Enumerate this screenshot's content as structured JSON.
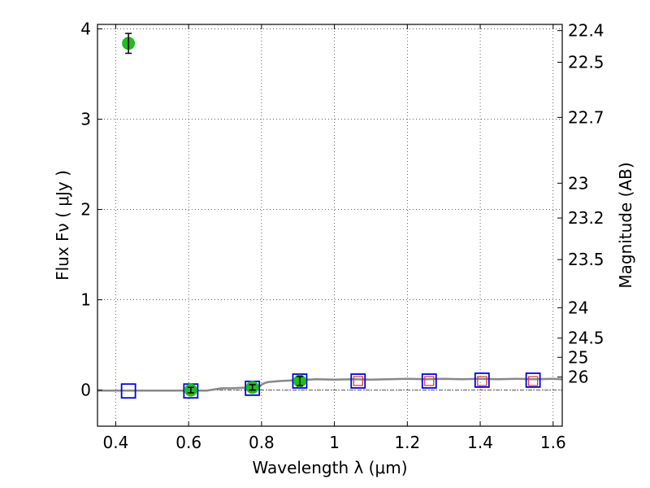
{
  "chart_data": {
    "type": "scatter",
    "title": "",
    "xlabel": "Wavelength  λ (μm)",
    "ylabel": "Flux  Fν  ( μJy )",
    "y2label": "Magnitude (AB)",
    "xlim": [
      0.35,
      1.625
    ],
    "ylim": [
      -0.4,
      4.05
    ],
    "grid": true,
    "x_ticks": [
      0.4,
      0.6,
      0.8,
      1.0,
      1.2,
      1.4,
      1.6
    ],
    "x_tick_labels": [
      "0.4",
      "0.6",
      "0.8",
      "1",
      "1.2",
      "1.4",
      "1.6"
    ],
    "y_ticks": [
      0,
      1,
      2,
      3,
      4
    ],
    "y_tick_labels": [
      "0",
      "1",
      "2",
      "3",
      "4"
    ],
    "y2_ticks": [
      22.4,
      22.5,
      22.7,
      23,
      23.2,
      23.5,
      24,
      24.5,
      25,
      26
    ],
    "y2_tick_labels": [
      "22.4",
      "22.5",
      "22.7",
      "23",
      "23.2",
      "23.5",
      "24",
      "24.5",
      "25",
      "26"
    ],
    "series": [
      {
        "marker": "circle",
        "color": "#22bb22",
        "x": [
          0.435,
          0.606,
          0.775,
          0.905
        ],
        "y": [
          3.84,
          0.0,
          0.03,
          0.1
        ],
        "yerr": [
          0.11,
          0.03,
          0.03,
          0.05
        ]
      },
      {
        "marker": "open-square",
        "color": "#0000dd",
        "x": [
          0.435,
          0.606,
          0.775,
          0.905,
          1.065,
          1.26,
          1.405,
          1.545
        ],
        "y": [
          -0.01,
          -0.01,
          0.02,
          0.1,
          0.1,
          0.1,
          0.11,
          0.11
        ]
      },
      {
        "marker": "open-square",
        "color": "#dd3333",
        "x": [
          1.065,
          1.26,
          1.405,
          1.545
        ],
        "y": [
          0.1,
          0.1,
          0.1,
          0.1
        ]
      },
      {
        "marker": "line",
        "color": "#888888",
        "x": [
          0.35,
          0.5,
          0.65,
          0.69,
          0.72,
          0.75,
          0.79,
          0.8,
          0.81,
          0.82,
          0.85,
          0.9,
          0.95,
          1.0,
          1.05,
          1.1,
          1.15,
          1.2,
          1.25,
          1.3,
          1.35,
          1.4,
          1.45,
          1.5,
          1.55,
          1.6,
          1.625
        ],
        "y": [
          -0.005,
          -0.005,
          -0.005,
          0.02,
          0.02,
          0.025,
          0.02,
          0.06,
          0.08,
          0.09,
          0.1,
          0.11,
          0.12,
          0.115,
          0.12,
          0.115,
          0.12,
          0.125,
          0.12,
          0.125,
          0.12,
          0.125,
          0.12,
          0.125,
          0.12,
          0.125,
          0.12
        ]
      }
    ]
  }
}
